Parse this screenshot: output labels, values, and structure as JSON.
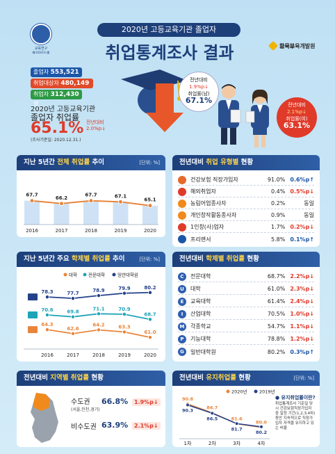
{
  "header": {
    "subtitle": "2020년 고등교육기관 졸업자",
    "title": "취업통계조사 결과",
    "logo_left_line1": "교육연구",
    "logo_left_line2": "韓 EDUCA 國",
    "logo_right_1": "교육부",
    "logo_right_2": "한국교육개발원"
  },
  "hero": {
    "grads_label": "졸업자",
    "grads_value": "553,521",
    "unit": "명",
    "target_label": "취업대상자",
    "target_value": "480,149",
    "employed_label": "취업자",
    "employed_value": "312,430",
    "line1": "2020년 고등교육기관",
    "line2": "졸업자 취업률",
    "rate": "65.1%",
    "rate_delta_label": "전년대비",
    "rate_delta": "2.0%p",
    "date": "(조사기준일: 2020.12.31.)",
    "male": {
      "delta_label": "전년대비",
      "delta": "1.9%p",
      "label": "취업률(남)",
      "value": "67.1%"
    },
    "female": {
      "delta_label": "전년대비",
      "delta": "2.1%p",
      "label": "취업률(여)",
      "value": "63.1%"
    }
  },
  "trend": {
    "title_a": "지난 5년간 ",
    "title_b": "전체 취업률",
    "title_c": " 추이",
    "unit": "[단위: %]"
  },
  "academic": {
    "title_a": "지난 5년간 주요 ",
    "title_b": "학제별 취업률",
    "title_c": " 추이",
    "unit": "[단위: %]",
    "legend": [
      "대학",
      "전문대학",
      "일반대학원"
    ]
  },
  "type_rates": {
    "title_a": "전년대비 ",
    "title_b": "취업 유형별",
    "title_c": " 현황",
    "rows": [
      {
        "name": "건강보험 직장가입자",
        "value": "91.0%",
        "change": "0.6%p",
        "dir": "up",
        "color": "#e66a2a",
        "icon": "heart-icon"
      },
      {
        "name": "해외취업자",
        "value": "0.4%",
        "change": "0.5%p",
        "dir": "down",
        "color": "#e03a2a",
        "icon": "globe-icon"
      },
      {
        "name": "농림어업종사자",
        "value": "0.2%",
        "change": "동일",
        "dir": "same",
        "color": "#f08a1c",
        "icon": "tractor-icon"
      },
      {
        "name": "개인창작활동종사자",
        "value": "0.9%",
        "change": "동일",
        "dir": "same",
        "color": "#f08a1c",
        "icon": "palette-icon"
      },
      {
        "name": "1인창(사)업자",
        "value": "1.7%",
        "change": "0.2%p",
        "dir": "down",
        "color": "#e03a2a",
        "icon": "person-icon"
      },
      {
        "name": "프리랜서",
        "value": "5.8%",
        "change": "0.1%p",
        "dir": "up",
        "color": "#1c56a8",
        "icon": "group-icon"
      }
    ]
  },
  "school_rates": {
    "title_a": "전년대비 ",
    "title_b": "학제별 취업률",
    "title_c": " 현황",
    "rows": [
      {
        "letter": "C",
        "name": "전문대학",
        "value": "68.7%",
        "change": "2.2%p",
        "dir": "down",
        "color": "#2e5fb0"
      },
      {
        "letter": "U",
        "name": "대학",
        "value": "61.0%",
        "change": "2.3%p",
        "dir": "down",
        "color": "#2e5fb0"
      },
      {
        "letter": "E",
        "name": "교육대학",
        "value": "61.4%",
        "change": "2.4%p",
        "dir": "down",
        "color": "#2e5fb0"
      },
      {
        "letter": "I",
        "name": "산업대학",
        "value": "70.5%",
        "change": "1.0%p",
        "dir": "down",
        "color": "#2e5fb0"
      },
      {
        "letter": "M",
        "name": "각종학교",
        "value": "54.7%",
        "change": "1.1%p",
        "dir": "down",
        "color": "#2e5fb0"
      },
      {
        "letter": "P",
        "name": "기능대학",
        "value": "78.8%",
        "change": "1.2%p",
        "dir": "down",
        "color": "#2e5fb0"
      },
      {
        "letter": "G",
        "name": "일반대학원",
        "value": "80.2%",
        "change": "0.3%p",
        "dir": "up",
        "color": "#2e5fb0"
      }
    ]
  },
  "region": {
    "title_a": "전년대비 ",
    "title_b": "지역별 취업률",
    "title_c": " 현황",
    "capital": {
      "name": "수도권",
      "sub": "(서울,인천,경기)",
      "value": "66.8%",
      "change": "1.9%p"
    },
    "noncapital": {
      "name": "비수도권",
      "value": "63.9%",
      "change": "2.1%p"
    }
  },
  "retention": {
    "title_a": "전년대비 ",
    "title_b": "유지취업률",
    "title_c": " 현황",
    "unit": "[단위: %]",
    "legend": [
      "2020년",
      "2019년"
    ],
    "info_q": "● 유지취업률이란?",
    "info_body": "취업통계조사 기준일 당시 건강보험직장가입자 중 일정 기간(1,2,3,4차) 동안 지속적으로 직장가입자 자격을 유지하고 있는 비율"
  },
  "chart_data": [
    {
      "type": "line",
      "title": "지난 5년간 전체 취업률 추이",
      "categories": [
        "2016",
        "2017",
        "2018",
        "2019",
        "2020"
      ],
      "series": [
        {
          "values": [
            67.7,
            66.2,
            67.7,
            67.1,
            65.1
          ]
        }
      ],
      "ylim": [
        55,
        75
      ],
      "color": "#e8853a",
      "bar_color": "#cfe2f5"
    },
    {
      "type": "line",
      "title": "지난 5년간 주요 학제별 취업률 추이",
      "categories": [
        "2016",
        "2017",
        "2018",
        "2019",
        "2020"
      ],
      "series": [
        {
          "name": "일반대학원",
          "values": [
            78.3,
            77.7,
            78.9,
            79.9,
            80.2
          ],
          "color": "#24408a"
        },
        {
          "name": "전문대학",
          "values": [
            70.6,
            69.8,
            71.1,
            70.9,
            68.7
          ],
          "color": "#1ea4b8"
        },
        {
          "name": "대학",
          "values": [
            64.3,
            62.6,
            64.2,
            63.3,
            61.0
          ],
          "color": "#e8853a"
        }
      ],
      "ylim": [
        56,
        84
      ]
    },
    {
      "type": "line",
      "title": "전년대비 유지취업률 현황",
      "categories": [
        "1차",
        "2차",
        "3차",
        "4차"
      ],
      "series": [
        {
          "name": "2020년",
          "values": [
            90.8,
            86.7,
            81.6,
            80.0
          ],
          "color": "#e8853a"
        },
        {
          "name": "2019년",
          "values": [
            90.3,
            86.5,
            81.7,
            80.2
          ],
          "color": "#24408a"
        }
      ],
      "ylim": [
        76,
        94
      ]
    }
  ]
}
